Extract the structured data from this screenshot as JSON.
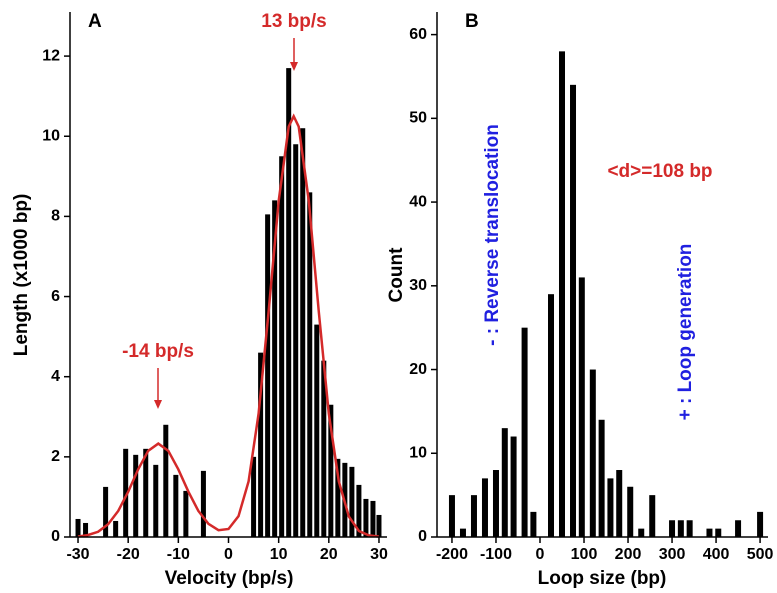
{
  "chart_data": [
    {
      "type": "bar",
      "panel_label": "A",
      "xlabel": "Velocity (bp/s)",
      "ylabel": "Length (x1000 bp)",
      "x": [
        -30,
        -28.5,
        -24.5,
        -22.5,
        -20.5,
        -18.5,
        -16.5,
        -14.5,
        -12.5,
        -10.5,
        -8.5,
        -5,
        5,
        6.4,
        7.8,
        9.2,
        10.6,
        12,
        13.4,
        14.8,
        16.2,
        17.6,
        19,
        20.4,
        21.8,
        23.2,
        24.6,
        26,
        27.4,
        28.8,
        30
      ],
      "values": [
        0.45,
        0.35,
        1.25,
        0.4,
        2.2,
        2.05,
        2.2,
        1.8,
        2.8,
        1.55,
        1.15,
        1.65,
        2.0,
        4.6,
        8.05,
        8.4,
        9.5,
        11.7,
        9.8,
        10.2,
        8.6,
        5.3,
        4.4,
        3.3,
        1.95,
        1.85,
        1.75,
        1.3,
        0.95,
        0.9,
        0.55
      ],
      "color": "#000000",
      "fit": {
        "color": "#d42a2a",
        "x": [
          -30,
          -28,
          -26,
          -24,
          -22,
          -20,
          -18,
          -16,
          -14,
          -12,
          -10,
          -8,
          -6,
          -4,
          -2,
          0,
          2,
          4,
          6,
          8,
          10,
          12,
          13,
          14,
          16,
          18,
          20,
          22,
          24,
          26,
          28,
          30
        ],
        "values": [
          0.01,
          0.05,
          0.13,
          0.32,
          0.65,
          1.13,
          1.69,
          2.15,
          2.33,
          2.15,
          1.69,
          1.13,
          0.65,
          0.33,
          0.17,
          0.2,
          0.52,
          1.39,
          3.08,
          5.62,
          8.39,
          10.24,
          10.5,
          10.24,
          8.39,
          5.62,
          3.08,
          1.39,
          0.51,
          0.15,
          0.04,
          0.01
        ]
      },
      "annotations": [
        {
          "text": "13 bp/s",
          "color": "#d42a2a"
        },
        {
          "text": "-14 bp/s",
          "color": "#d42a2a"
        }
      ],
      "xlim": [
        -31.6,
        31.6
      ],
      "xticks": [
        -30,
        -20,
        -10,
        0,
        10,
        20,
        30
      ],
      "ylim": [
        0,
        13.1
      ],
      "yticks": [
        0,
        2,
        4,
        6,
        8,
        10,
        12
      ]
    },
    {
      "type": "bar",
      "panel_label": "B",
      "xlabel": "Loop size (bp)",
      "ylabel": "Count",
      "x": [
        -200,
        -175,
        -150,
        -125,
        -100,
        -80,
        -60,
        -35,
        -15,
        25,
        50,
        75,
        95,
        120,
        140,
        160,
        180,
        205,
        230,
        255,
        300,
        320,
        340,
        385,
        405,
        450,
        500
      ],
      "values": [
        5,
        1,
        5,
        7,
        8,
        13,
        12,
        25,
        3,
        29,
        58,
        54,
        31,
        20,
        14,
        7,
        8,
        6,
        1,
        5,
        2,
        2,
        2,
        1,
        1,
        2,
        3
      ],
      "color": "#000000",
      "annotations": [
        {
          "text": "<d>=108 bp",
          "color": "#d42a2a"
        },
        {
          "text": "- : Reverse translocation",
          "color": "#2020e0"
        },
        {
          "text": "+ : Loop generation",
          "color": "#2020e0"
        }
      ],
      "xlim": [
        -234,
        518
      ],
      "xticks": [
        -200,
        -100,
        0,
        100,
        200,
        300,
        400,
        500
      ],
      "ylim": [
        0,
        62.7
      ],
      "yticks": [
        0,
        10,
        20,
        30,
        40,
        50,
        60
      ]
    }
  ]
}
